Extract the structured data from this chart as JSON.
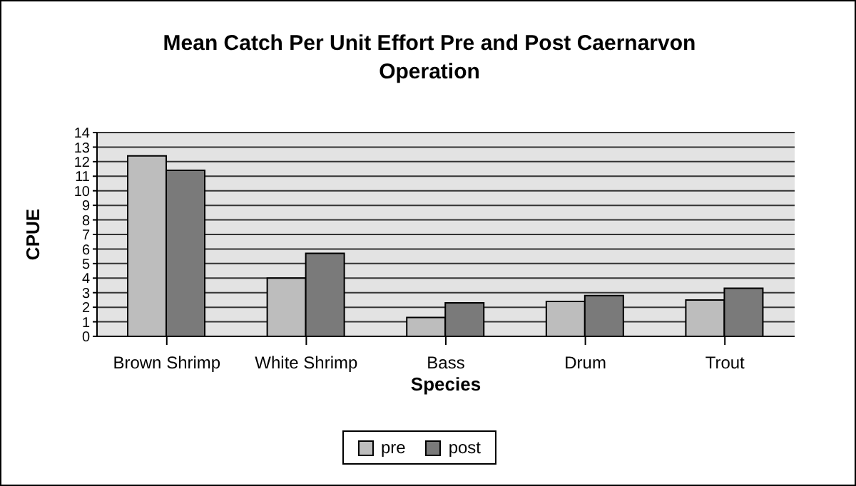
{
  "chart_data": {
    "type": "bar",
    "title": "Mean Catch Per Unit Effort Pre and Post Caernarvon Operation",
    "xlabel": "Species",
    "ylabel": "CPUE",
    "categories": [
      "Brown Shrimp",
      "White Shrimp",
      "Bass",
      "Drum",
      "Trout"
    ],
    "series": [
      {
        "name": "pre",
        "color": "#bdbdbd",
        "values": [
          12.4,
          4.0,
          1.3,
          2.4,
          2.5
        ]
      },
      {
        "name": "post",
        "color": "#7a7a7a",
        "values": [
          11.4,
          5.7,
          2.3,
          2.8,
          3.3
        ]
      }
    ],
    "ylim": [
      0,
      14
    ],
    "yticks": [
      0,
      1,
      2,
      3,
      4,
      5,
      6,
      7,
      8,
      9,
      10,
      11,
      12,
      13,
      14
    ],
    "grid": "y",
    "legend": "bottom"
  }
}
